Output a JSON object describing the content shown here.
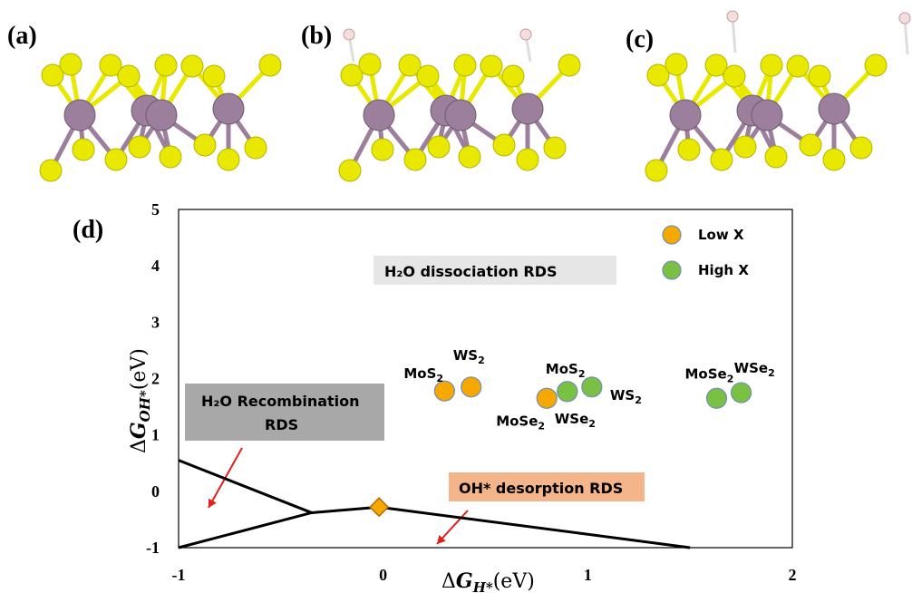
{
  "panels": {
    "a": "(a)",
    "b": "(b)",
    "c": "(c)",
    "d": "(d)"
  },
  "colors": {
    "metal_atom": "#9c7f9c",
    "chalcogen_atom": "#e8e800",
    "hydrogen_atom": "#f3dede",
    "low_x": "#f5a800",
    "high_x": "#7ac143",
    "marker_edge": "#6f8fb5",
    "recombination_box": "#a8a8a8",
    "desorption_box": "#f5b58a",
    "dissociation_box": "#e6e6e6",
    "arrow": "#e0201b",
    "diamond": "#f5a800"
  },
  "chart_data": {
    "type": "scatter",
    "xlabel": "ΔG_H*(eV)",
    "ylabel": "ΔG_OH*(eV)",
    "xlim": [
      -1,
      2
    ],
    "ylim": [
      -1,
      5
    ],
    "x_ticks": [
      "-1",
      "0",
      "1",
      "2"
    ],
    "y_ticks": [
      "-1",
      "0",
      "1",
      "2",
      "3",
      "4",
      "5"
    ],
    "legend": {
      "placement": "top-right",
      "entries": [
        "Low X",
        "High X"
      ]
    },
    "series": [
      {
        "name": "Low X",
        "points": [
          {
            "label": "MoS",
            "sub": "2",
            "x": 0.3,
            "y": 1.78
          },
          {
            "label": "WS",
            "sub": "2",
            "x": 0.43,
            "y": 1.85
          },
          {
            "label": "MoSe",
            "sub": "2",
            "x": 0.8,
            "y": 1.65
          }
        ]
      },
      {
        "name": "High X",
        "points": [
          {
            "label": "WSe",
            "sub": "2",
            "x": 0.9,
            "y": 1.77
          },
          {
            "label": "MoS",
            "sub": "2",
            "x": 0.9,
            "y": 1.77
          },
          {
            "label": "WS",
            "sub": "2",
            "x": 1.02,
            "y": 1.85
          },
          {
            "label": "MoSe",
            "sub": "2",
            "x": 1.63,
            "y": 1.65
          },
          {
            "label": "WSe",
            "sub": "2",
            "x": 1.75,
            "y": 1.75
          }
        ]
      }
    ],
    "boundary_lines": [
      [
        [
          -1,
          0.55
        ],
        [
          -0.35,
          -0.38
        ]
      ],
      [
        [
          -1,
          -1.0
        ],
        [
          -0.35,
          -0.38
        ],
        [
          -0.02,
          -0.28
        ],
        [
          1.5,
          -1.0
        ]
      ]
    ],
    "apex_marker": {
      "x": -0.02,
      "y": -0.28
    },
    "regions": {
      "dissociation": "H₂O dissociation RDS",
      "recombination_line1": "H₂O Recombination",
      "recombination_line2": "RDS",
      "desorption": "OH* desorption RDS"
    }
  }
}
